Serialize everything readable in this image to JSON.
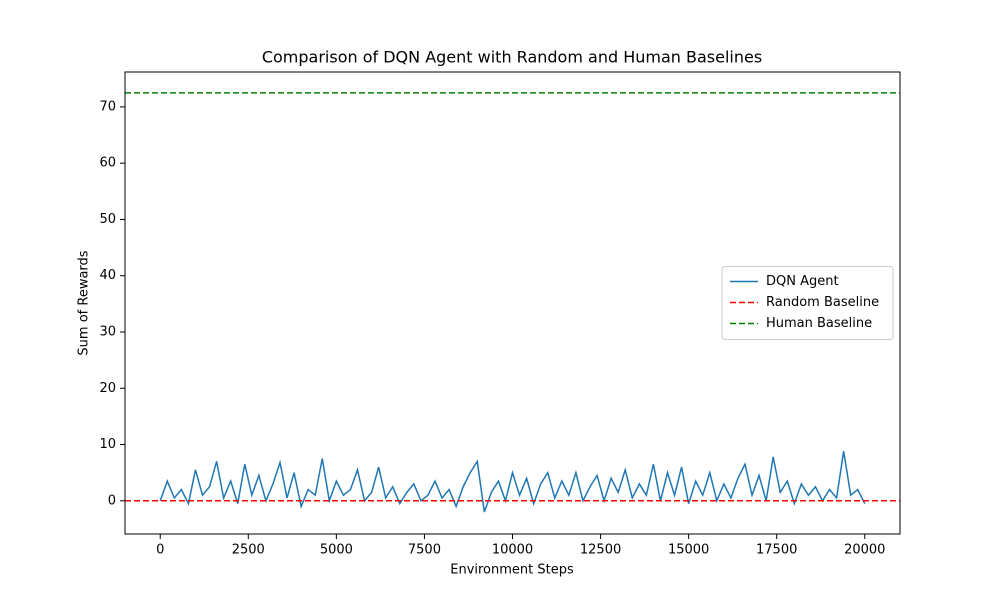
{
  "chart_data": {
    "type": "line",
    "title": "Comparison of DQN Agent with Random and Human Baselines",
    "xlabel": "Environment Steps",
    "ylabel": "Sum of Rewards",
    "x": [
      0,
      200,
      400,
      600,
      800,
      1000,
      1200,
      1400,
      1600,
      1800,
      2000,
      2200,
      2400,
      2600,
      2800,
      3000,
      3200,
      3400,
      3600,
      3800,
      4000,
      4200,
      4400,
      4600,
      4800,
      5000,
      5200,
      5400,
      5600,
      5800,
      6000,
      6200,
      6400,
      6600,
      6800,
      7000,
      7200,
      7400,
      7600,
      7800,
      8000,
      8200,
      8400,
      8600,
      8800,
      9000,
      9200,
      9400,
      9600,
      9800,
      10000,
      10200,
      10400,
      10600,
      10800,
      11000,
      11200,
      11400,
      11600,
      11800,
      12000,
      12200,
      12400,
      12600,
      12800,
      13000,
      13200,
      13400,
      13600,
      13800,
      14000,
      14200,
      14400,
      14600,
      14800,
      15000,
      15200,
      15400,
      15600,
      15800,
      16000,
      16200,
      16400,
      16600,
      16800,
      17000,
      17200,
      17400,
      17600,
      17800,
      18000,
      18200,
      18400,
      18600,
      18800,
      19000,
      19200,
      19400,
      19600,
      19800,
      20000
    ],
    "series": [
      {
        "name": "DQN Agent",
        "color": "#1f77b4",
        "values": [
          0,
          3.5,
          0.5,
          2,
          -0.5,
          5.5,
          1,
          2.5,
          7,
          0.5,
          3.5,
          -0.5,
          6.5,
          1,
          4.5,
          0,
          3,
          6.8,
          0.5,
          5,
          -1,
          2,
          1,
          7.5,
          0,
          3.5,
          1,
          2,
          5.5,
          0,
          1.5,
          6,
          0.5,
          2.5,
          -0.5,
          1.5,
          3,
          0,
          1,
          3.5,
          0.5,
          2,
          -1,
          2.5,
          5,
          7,
          -2,
          1.5,
          3.5,
          0,
          5,
          1,
          4,
          -0.5,
          3,
          5,
          0.5,
          3.5,
          1,
          5,
          0,
          2.5,
          4.5,
          0,
          4,
          1.5,
          5.5,
          0.5,
          3,
          1,
          6.5,
          0,
          5,
          1,
          6,
          -0.5,
          3.5,
          1,
          5,
          0,
          3,
          0.5,
          4,
          6.5,
          1,
          4.5,
          0,
          7.8,
          1.5,
          3.5,
          -0.5,
          3,
          1,
          2.5,
          0,
          2,
          0.5,
          8.8,
          1,
          2,
          -0.5
        ]
      }
    ],
    "baselines": [
      {
        "name": "Random Baseline",
        "color": "#ff0000",
        "value": 0
      },
      {
        "name": "Human Baseline",
        "color": "#008000",
        "value": 72.5
      }
    ],
    "xlim": [
      -1000,
      21000
    ],
    "ylim": [
      -5.9,
      76.2
    ],
    "xticks": [
      0,
      2500,
      5000,
      7500,
      10000,
      12500,
      15000,
      17500,
      20000
    ],
    "yticks": [
      0,
      10,
      20,
      30,
      40,
      50,
      60,
      70
    ],
    "legend": "center right"
  }
}
